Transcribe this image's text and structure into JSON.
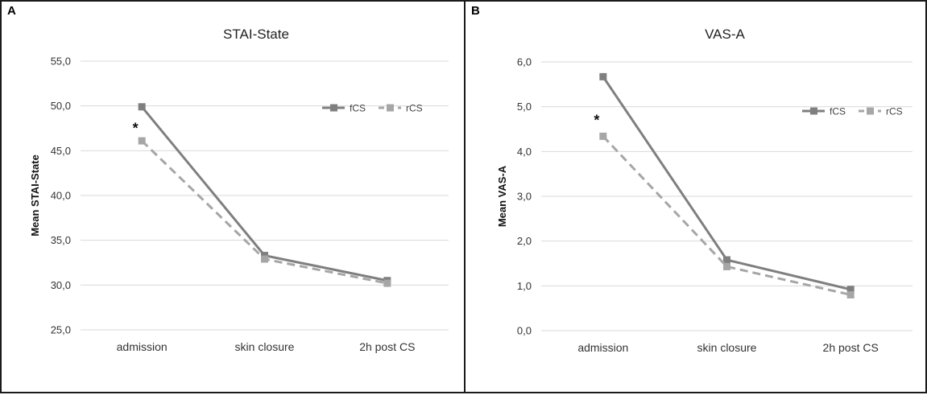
{
  "chart_data": [
    {
      "type": "line",
      "panel_label": "A",
      "title": "STAI-State",
      "xlabel": "",
      "ylabel": "Mean STAI-State",
      "categories": [
        "admission",
        "skin closure",
        "2h post CS"
      ],
      "ylim": [
        25,
        55
      ],
      "yticks": [
        "25,0",
        "30,0",
        "35,0",
        "40,0",
        "45,0",
        "50,0",
        "55,0"
      ],
      "grid": true,
      "legend_position": "top-right",
      "series": [
        {
          "name": "fCS",
          "values": [
            49.9,
            33.3,
            30.5
          ],
          "color": "#7f7f7f",
          "dash": "solid"
        },
        {
          "name": "rCS",
          "values": [
            46.1,
            32.9,
            30.2
          ],
          "color": "#a6a6a6",
          "dash": "dashed"
        }
      ],
      "annotations": [
        {
          "text": "*",
          "category": "admission",
          "y": 47.5
        }
      ]
    },
    {
      "type": "line",
      "panel_label": "B",
      "title": "VAS-A",
      "xlabel": "",
      "ylabel": "Mean VAS-A",
      "categories": [
        "admission",
        "skin closure",
        "2h post CS"
      ],
      "ylim": [
        0,
        6
      ],
      "yticks": [
        "0,0",
        "1,0",
        "2,0",
        "3,0",
        "4,0",
        "5,0",
        "6,0"
      ],
      "grid": true,
      "legend_position": "top-right",
      "series": [
        {
          "name": "fCS",
          "values": [
            5.67,
            1.58,
            0.92
          ],
          "color": "#7f7f7f",
          "dash": "solid"
        },
        {
          "name": "rCS",
          "values": [
            4.34,
            1.43,
            0.8
          ],
          "color": "#a6a6a6",
          "dash": "dashed"
        }
      ],
      "annotations": [
        {
          "text": "*",
          "category": "admission",
          "y": 4.7
        }
      ]
    }
  ]
}
